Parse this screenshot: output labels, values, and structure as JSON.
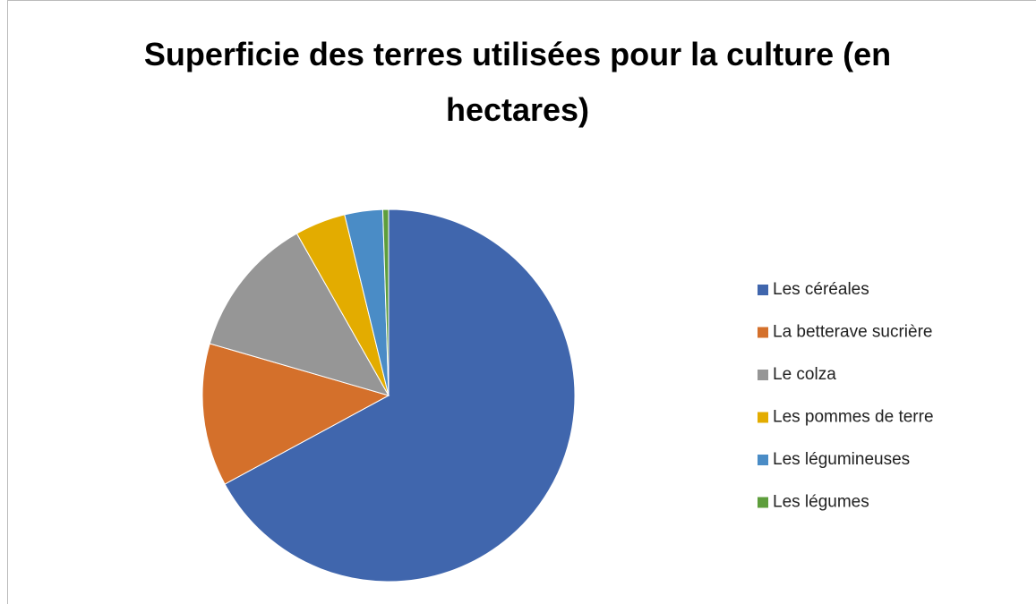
{
  "chart_data": {
    "type": "pie",
    "title": "Superficie des terres utilisées pour la culture (en hectares)",
    "categories": [
      "Les céréales",
      "La betterave sucrière",
      "Le colza",
      "Les pommes de terre",
      "Les légumineuses",
      "Les légumes"
    ],
    "values": [
      67.1,
      12.4,
      12.3,
      4.4,
      3.3,
      0.5
    ],
    "colors": [
      "#4066ad",
      "#d4702b",
      "#969696",
      "#e3ac00",
      "#4a8cc6",
      "#5e9e3c"
    ],
    "legend": "right"
  }
}
